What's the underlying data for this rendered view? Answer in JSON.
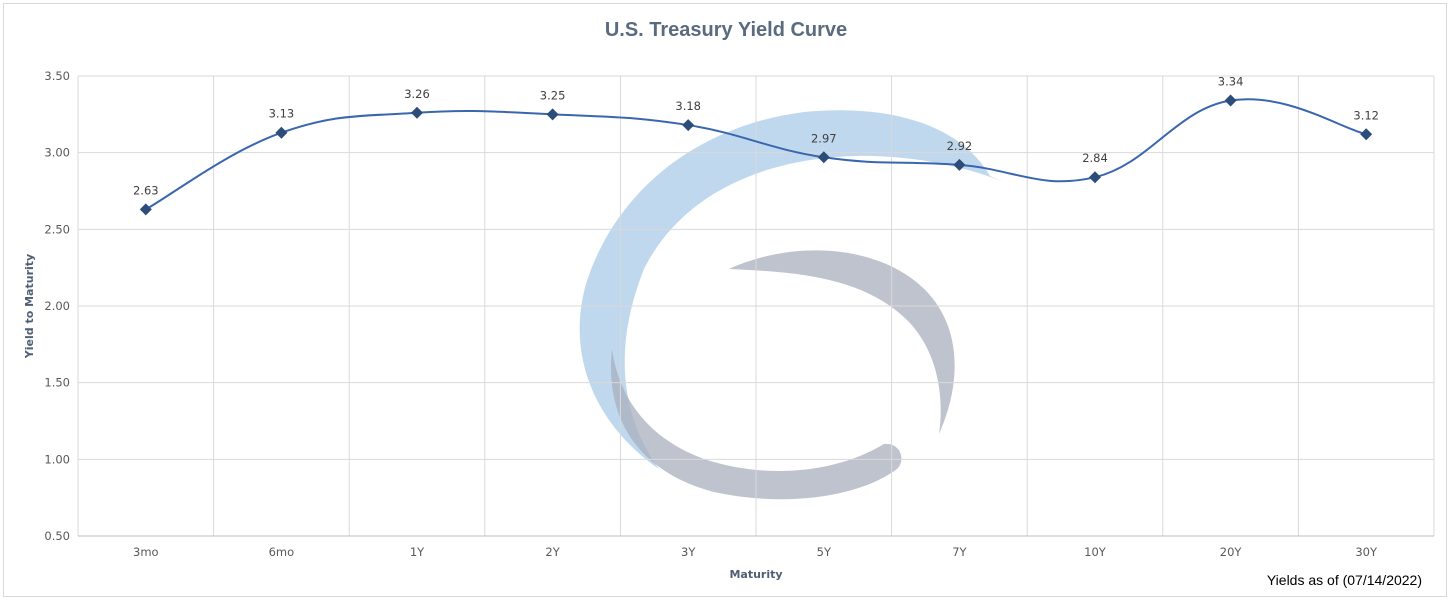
{
  "chart_data": {
    "type": "line",
    "title": "U.S. Treasury Yield Curve",
    "xlabel": "Maturity",
    "ylabel": "Yield to Maturity",
    "categories": [
      "3mo",
      "6mo",
      "1Y",
      "2Y",
      "3Y",
      "5Y",
      "7Y",
      "10Y",
      "20Y",
      "30Y"
    ],
    "series": [
      {
        "values": [
          2.63,
          3.13,
          3.26,
          3.25,
          3.18,
          2.97,
          2.92,
          2.84,
          3.34,
          3.12
        ]
      }
    ],
    "data_labels": [
      "2.63",
      "3.13",
      "3.26",
      "3.25",
      "3.18",
      "2.97",
      "2.92",
      "2.84",
      "3.34",
      "3.12"
    ],
    "yticks": [
      "0.50",
      "1.00",
      "1.50",
      "2.00",
      "2.50",
      "3.00",
      "3.50"
    ],
    "ylim": [
      0.5,
      3.5
    ],
    "grid": true,
    "smooth": true,
    "legend": "none",
    "colors": {
      "line": "#3a66b0",
      "marker": "#2c4c7a",
      "grid": "#d9d9d9"
    }
  },
  "footnote": "Yields as of (07/14/2022)",
  "watermark": {
    "icon": "swirl-logo-icon",
    "colors": [
      "#a9cbe7",
      "#a8afbd"
    ]
  }
}
